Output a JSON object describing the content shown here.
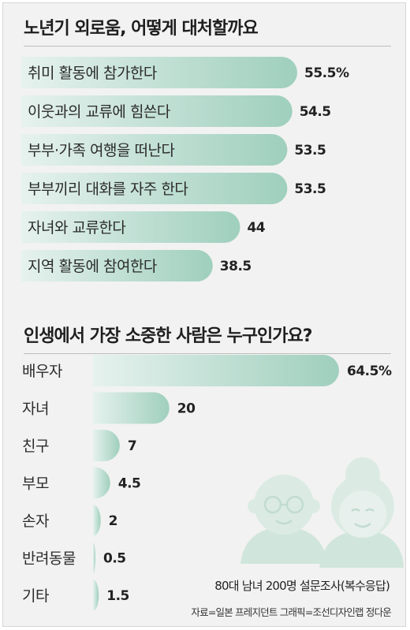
{
  "chart_data": [
    {
      "type": "bar",
      "title": "노년기 외로움, 어떻게 대처할까요",
      "categories": [
        "취미 활동에 참가한다",
        "이웃과의 교류에 힘쓴다",
        "부부·가족 여행을 떠난다",
        "부부끼리 대화를 자주 한다",
        "자녀와 교류한다",
        "지역 활동에 참여한다"
      ],
      "values": [
        55.5,
        54.5,
        53.5,
        53.5,
        44,
        38.5
      ],
      "value_labels": [
        "55.5%",
        "54.5",
        "53.5",
        "53.5",
        "44",
        "38.5"
      ],
      "xlim": [
        0,
        55.5
      ]
    },
    {
      "type": "bar",
      "title": "인생에서 가장 소중한 사람은 누구인가요?",
      "categories": [
        "배우자",
        "자녀",
        "친구",
        "부모",
        "손자",
        "반려동물",
        "기타"
      ],
      "values": [
        64.5,
        20,
        7,
        4.5,
        2,
        0.5,
        1.5
      ],
      "value_labels": [
        "64.5%",
        "20",
        "7",
        "4.5",
        "2",
        "0.5",
        "1.5"
      ],
      "xlim": [
        0,
        64.5
      ]
    }
  ],
  "colors": {
    "bar_start": "#e6f2ee",
    "bar_end": "#9fcfbd",
    "background": "#f2f2f2"
  },
  "footnote": {
    "survey": "80대 남녀 200명 설문조사(복수응답)",
    "credit": "자료=일본 프레지던트  그래픽=조선디자인랩 정다운"
  },
  "illustration": "elderly-couple-illustration"
}
